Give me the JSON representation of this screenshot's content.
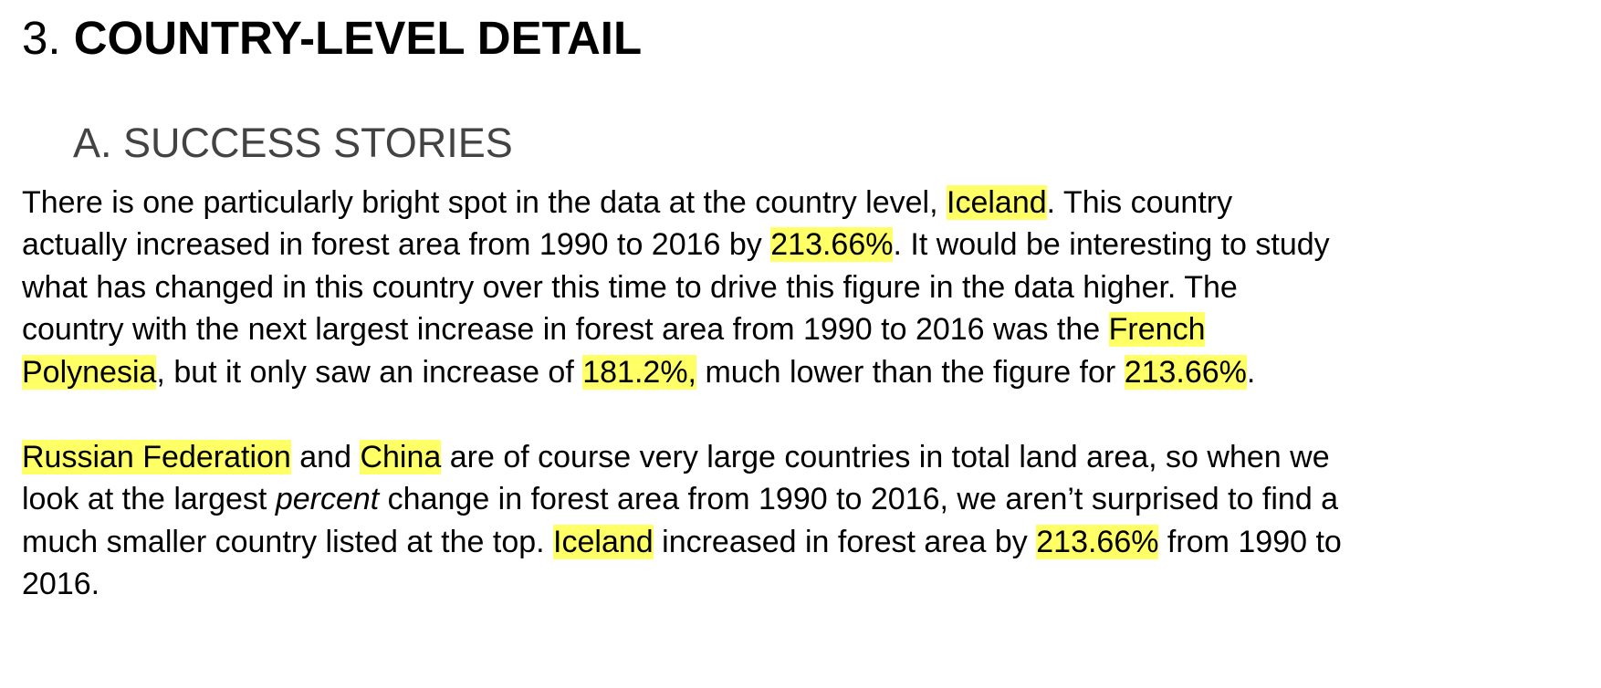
{
  "section": {
    "number": "3.",
    "title": "COUNTRY-LEVEL DETAIL"
  },
  "subsection": {
    "title": "A. SUCCESS STORIES"
  },
  "paragraph1": {
    "l1a": "There is one particularly bright spot in the data at the country level, ",
    "l1b": "Iceland",
    "l1c": ". This country",
    "l2a": "actually  increased in forest area from 1990 to 2016 by ",
    "l2b": "213.66%",
    "l2c": ". It would be interesting to study",
    "l3": "what has changed in this country over this time to drive this figure in the data higher. The",
    "l4a": "country with the next largest increase in forest area from 1990 to 2016 was the ",
    "l4b": "French",
    "l5a": "Polynesia",
    "l5b": ", but it only saw an increase of ",
    "l5c": "181.2%,",
    "l5d": " much lower than the figure for ",
    "l5e": "213.66%",
    "l5f": "."
  },
  "paragraph2": {
    "l1a": "Russian Federation",
    "l1b": " and ",
    "l1c": "China",
    "l1d": " are of course very large countries in total land area, so when we",
    "l2a": "look at the largest ",
    "l2b": "percent",
    "l2c": " change in forest area from 1990 to 2016, we aren’t surprised to find a",
    "l3a": "much smaller country listed at the top. ",
    "l3b": "Iceland",
    "l3c": " increased in forest area by ",
    "l3d": "213.66%",
    "l3e": " from 1990 to",
    "l4": "2016."
  },
  "colors": {
    "highlight": "#ffff66",
    "subheading": "#434343"
  }
}
